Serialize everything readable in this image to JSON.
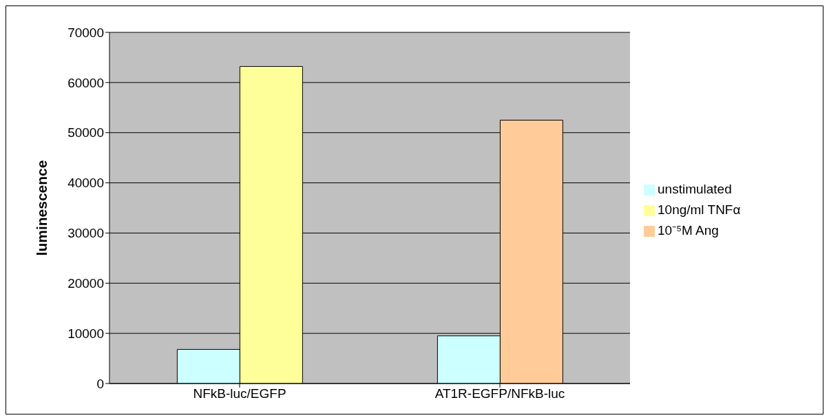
{
  "chart_data": {
    "type": "bar",
    "ylabel": "luminescence",
    "categories": [
      "NFkB-luc/EGFP",
      "AT1R-EGFP/NFkB-luc"
    ],
    "series": [
      {
        "name": "unstimulated",
        "color": "#ccffff",
        "values": [
          6800,
          9500
        ]
      },
      {
        "name": "10ng/ml TNFα",
        "color": "#ffff99",
        "values": [
          63200,
          null
        ]
      },
      {
        "name": "10⁻⁵M Ang",
        "color": "#ffcc99",
        "values": [
          null,
          52500
        ]
      }
    ],
    "ylim": [
      0,
      70000
    ],
    "yticks": [
      0,
      10000,
      20000,
      30000,
      40000,
      50000,
      60000,
      70000
    ],
    "grid": "y",
    "legend": "right"
  }
}
